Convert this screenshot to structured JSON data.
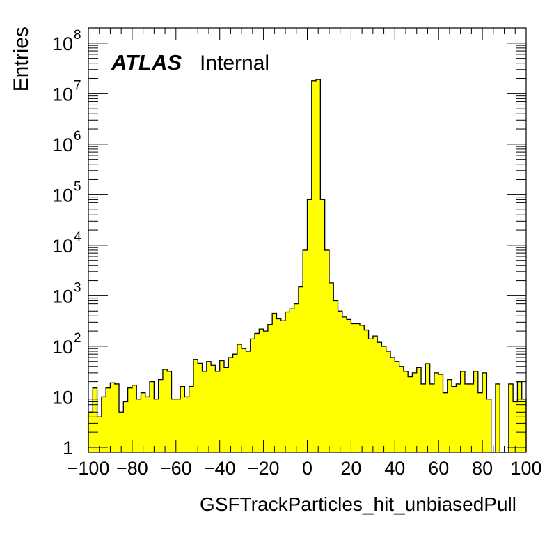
{
  "chart_data": {
    "type": "bar",
    "xlabel": "GSFTrackParticles_hit_unbiasedPull",
    "ylabel": "Entries",
    "x_range": [
      -100,
      100
    ],
    "ylim": [
      0.8,
      200000000
    ],
    "y_scale": "log",
    "grid": false,
    "bin_width": 2,
    "x_ticks": [
      -100,
      -80,
      -60,
      -40,
      -20,
      0,
      20,
      40,
      60,
      80,
      100
    ],
    "x_tick_labels": [
      "−100",
      "−80",
      "−60",
      "−40",
      "−20",
      "0",
      "20",
      "40",
      "60",
      "80",
      "100"
    ],
    "y_ticks": [
      {
        "value": 1,
        "base": "1",
        "exp": ""
      },
      {
        "value": 10,
        "base": "10",
        "exp": ""
      },
      {
        "value": 100,
        "base": "10",
        "exp": "2"
      },
      {
        "value": 1000,
        "base": "10",
        "exp": "3"
      },
      {
        "value": 10000,
        "base": "10",
        "exp": "4"
      },
      {
        "value": 100000,
        "base": "10",
        "exp": "5"
      },
      {
        "value": 1000000,
        "base": "10",
        "exp": "6"
      },
      {
        "value": 10000000,
        "base": "10",
        "exp": "7"
      },
      {
        "value": 100000000,
        "base": "10",
        "exp": "8"
      }
    ],
    "fill_color": "#ffff00",
    "line_color": "#000000",
    "values": [
      5,
      15,
      4,
      10,
      15,
      19,
      18,
      5,
      8,
      15,
      17,
      9,
      12,
      10,
      20,
      9,
      22,
      35,
      32,
      9,
      9,
      16,
      10,
      16,
      55,
      46,
      32,
      50,
      42,
      32,
      52,
      38,
      60,
      70,
      110,
      90,
      80,
      140,
      180,
      220,
      200,
      270,
      450,
      350,
      320,
      480,
      550,
      700,
      1500,
      8000,
      80000,
      18000000,
      19000000,
      80000,
      8000,
      1800,
      800,
      500,
      380,
      340,
      280,
      280,
      260,
      210,
      140,
      160,
      120,
      100,
      80,
      60,
      50,
      40,
      32,
      25,
      30,
      38,
      18,
      45,
      18,
      30,
      28,
      12,
      22,
      16,
      18,
      32,
      18,
      18,
      32,
      12,
      30,
      9,
      0.5,
      18,
      0.5,
      0.5,
      18,
      8,
      20,
      9
    ],
    "annotation": {
      "bold": "ATLAS",
      "normal": "Internal"
    }
  }
}
